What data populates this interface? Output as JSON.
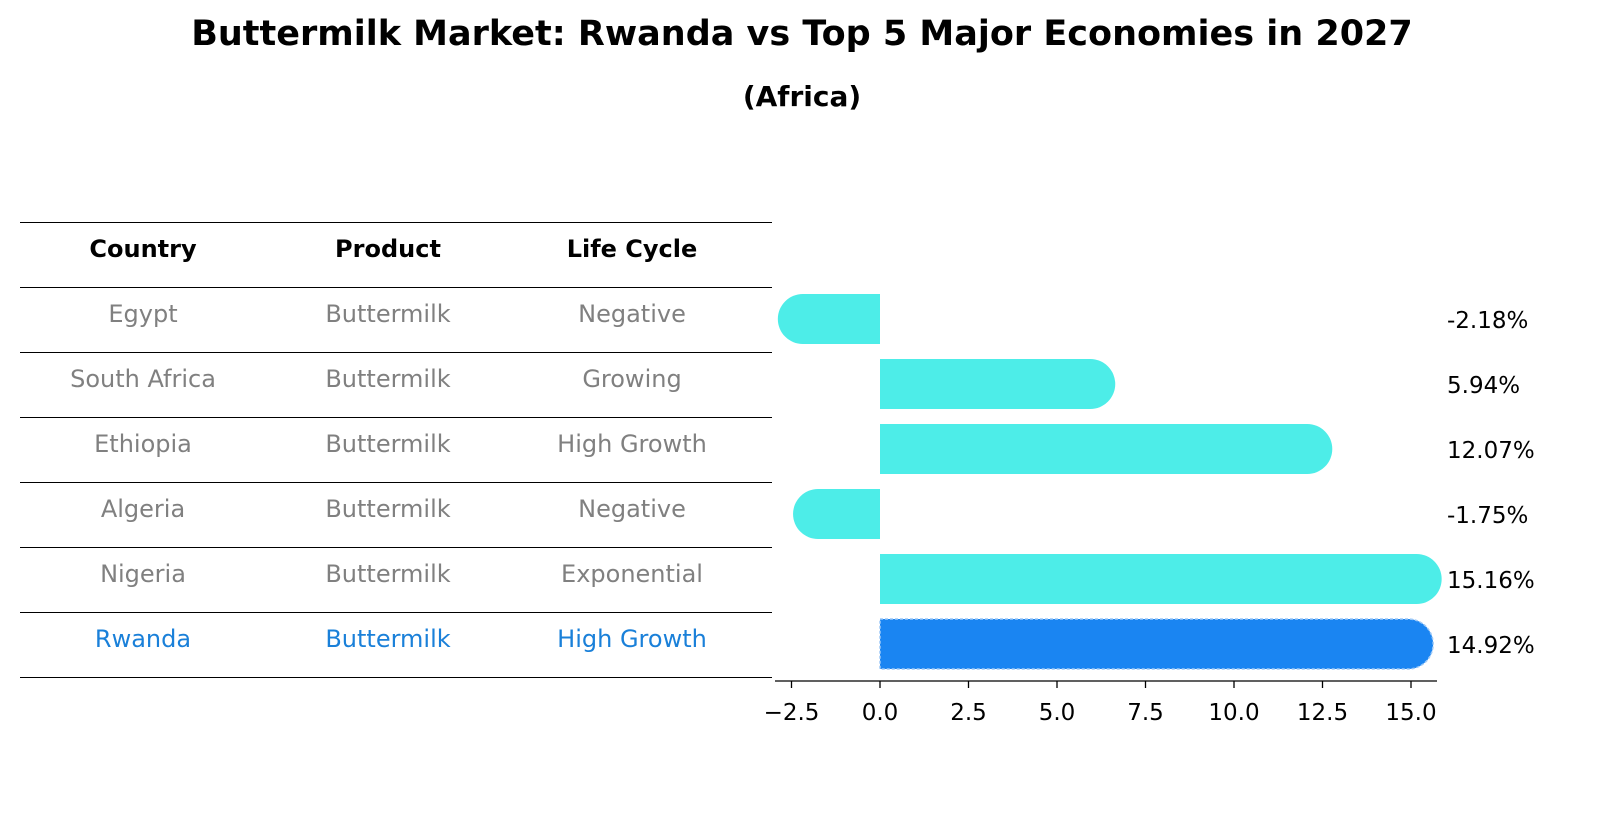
{
  "title": "Buttermilk Market: Rwanda vs Top 5 Major Economies in 2027",
  "subtitle": "(Africa)",
  "table": {
    "headers": [
      "Country",
      "Product",
      "Life Cycle"
    ],
    "rows": [
      {
        "country": "Egypt",
        "product": "Buttermilk",
        "life_cycle": "Negative",
        "highlight": false
      },
      {
        "country": "South Africa",
        "product": "Buttermilk",
        "life_cycle": "Growing",
        "highlight": false
      },
      {
        "country": "Ethiopia",
        "product": "Buttermilk",
        "life_cycle": "High Growth",
        "highlight": false
      },
      {
        "country": "Algeria",
        "product": "Buttermilk",
        "life_cycle": "Negative",
        "highlight": false
      },
      {
        "country": "Nigeria",
        "product": "Buttermilk",
        "life_cycle": "Exponential",
        "highlight": false
      },
      {
        "country": "Rwanda",
        "product": "Buttermilk",
        "life_cycle": "High Growth",
        "highlight": true
      }
    ]
  },
  "colors": {
    "bar": "#4dede8",
    "highlight_bar": "#1a85f2",
    "highlight_text": "#1a80d9",
    "muted_text": "#808080"
  },
  "chart_data": {
    "type": "bar",
    "orientation": "horizontal",
    "categories": [
      "Egypt",
      "South Africa",
      "Ethiopia",
      "Algeria",
      "Nigeria",
      "Rwanda"
    ],
    "values": [
      -2.18,
      5.94,
      12.07,
      -1.75,
      15.16,
      14.92
    ],
    "data_labels": [
      "-2.18%",
      "5.94%",
      "12.07%",
      "-1.75%",
      "15.16%",
      "14.92%"
    ],
    "highlight": "Rwanda",
    "xlim": [
      -3.0,
      16.0
    ],
    "xticks": [
      -2.5,
      0.0,
      2.5,
      5.0,
      7.5,
      10.0,
      12.5,
      15.0
    ],
    "xtick_labels": [
      "−2.5",
      "0.0",
      "2.5",
      "5.0",
      "7.5",
      "10.0",
      "12.5",
      "15.0"
    ],
    "grid": false,
    "xlabel": "",
    "ylabel": ""
  }
}
